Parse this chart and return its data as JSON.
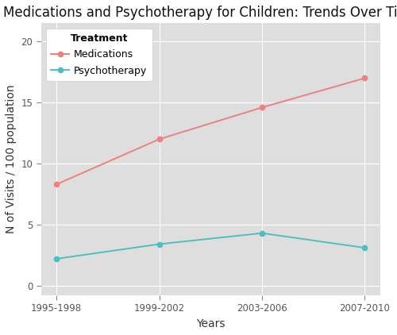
{
  "title": "Medications and Psychotherapy for Children: Trends Over Time",
  "xlabel": "Years",
  "ylabel": "N of Visits / 100 population",
  "x_labels": [
    "1995-1998",
    "1999-2002",
    "2003-2006",
    "2007-2010"
  ],
  "x_positions": [
    0,
    1,
    2,
    3
  ],
  "medications_values": [
    8.3,
    12.0,
    14.6,
    17.0
  ],
  "psychotherapy_values": [
    2.2,
    3.4,
    4.3,
    3.1
  ],
  "med_color": "#F08080",
  "psycho_color": "#4DBFBF",
  "background_color": "#DEDEDE",
  "plot_bg_color": "#DEDEDE",
  "fig_bg_color": "#FFFFFF",
  "legend_title": "Treatment",
  "legend_labels": [
    "Medications",
    "Psychotherapy"
  ],
  "ylim": [
    -0.8,
    21.5
  ],
  "yticks": [
    0,
    5,
    10,
    15,
    20
  ],
  "grid_color": "#FFFFFF",
  "title_fontsize": 12,
  "axis_label_fontsize": 10,
  "tick_fontsize": 8.5,
  "legend_fontsize": 9
}
